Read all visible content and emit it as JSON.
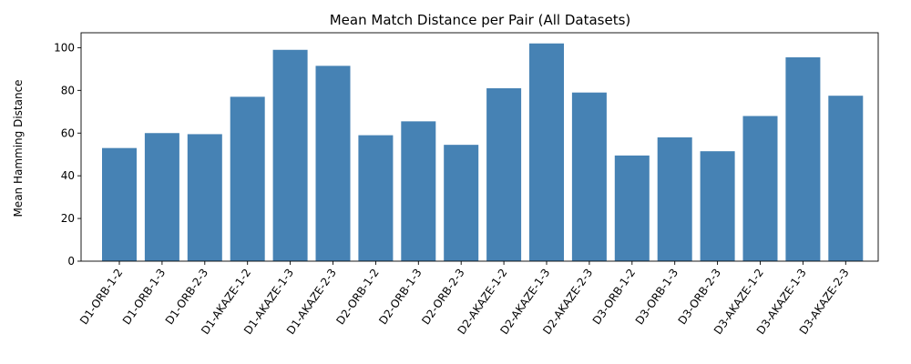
{
  "chart_data": {
    "type": "bar",
    "title": "Mean Match Distance per Pair (All Datasets)",
    "xlabel": "",
    "ylabel": "Mean Hamming Distance",
    "ylim": [
      0,
      107
    ],
    "yticks": [
      0,
      20,
      40,
      60,
      80,
      100
    ],
    "grid": false,
    "bar_color": "#4682b4",
    "categories": [
      "D1-ORB-1-2",
      "D1-ORB-1-3",
      "D1-ORB-2-3",
      "D1-AKAZE-1-2",
      "D1-AKAZE-1-3",
      "D1-AKAZE-2-3",
      "D2-ORB-1-2",
      "D2-ORB-1-3",
      "D2-ORB-2-3",
      "D2-AKAZE-1-2",
      "D2-AKAZE-1-3",
      "D2-AKAZE-2-3",
      "D3-ORB-1-2",
      "D3-ORB-1-3",
      "D3-ORB-2-3",
      "D3-AKAZE-1-2",
      "D3-AKAZE-1-3",
      "D3-AKAZE-2-3"
    ],
    "values": [
      53,
      60,
      59.5,
      77,
      99,
      91.5,
      59,
      65.5,
      54.5,
      81,
      102,
      79,
      49.5,
      58,
      51.5,
      68,
      95.5,
      77.5
    ]
  }
}
